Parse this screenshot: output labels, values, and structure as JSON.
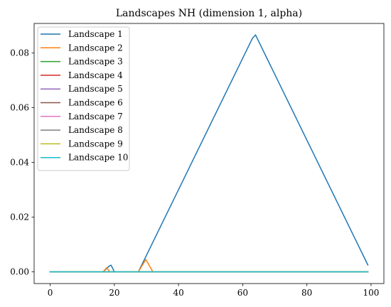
{
  "chart_data": {
    "type": "line",
    "title": "Landscapes NH (dimension 1, alpha)",
    "xlabel": "",
    "ylabel": "",
    "xlim": [
      -5,
      104
    ],
    "ylim": [
      -0.0043,
      0.0908
    ],
    "xticks": [
      0,
      20,
      40,
      60,
      80,
      100
    ],
    "xtick_labels": [
      "0",
      "20",
      "40",
      "60",
      "80",
      "100"
    ],
    "yticks": [
      0.0,
      0.02,
      0.04,
      0.06,
      0.08
    ],
    "ytick_labels": [
      "0.00",
      "0.02",
      "0.04",
      "0.06",
      "0.08"
    ],
    "grid": false,
    "legend_position": "top-left",
    "series": [
      {
        "name": "Landscape 1",
        "color": "#1f77b4",
        "points": [
          [
            0,
            0
          ],
          [
            16.5,
            0
          ],
          [
            18.5,
            0.0022
          ],
          [
            19,
            0.0024
          ],
          [
            20,
            0
          ],
          [
            27.5,
            0
          ],
          [
            63,
            0.0853
          ],
          [
            64,
            0.0866
          ],
          [
            99,
            0.0025
          ]
        ]
      },
      {
        "name": "Landscape 2",
        "color": "#ff7f0e",
        "points": [
          [
            0,
            0
          ],
          [
            16.5,
            0
          ],
          [
            17.6,
            0.0015
          ],
          [
            18.6,
            0
          ],
          [
            27.5,
            0
          ],
          [
            29.8,
            0.0045
          ],
          [
            32,
            0
          ],
          [
            99,
            0
          ]
        ]
      },
      {
        "name": "Landscape 3",
        "color": "#2ca02c",
        "points": [
          [
            0,
            0
          ],
          [
            99,
            0
          ]
        ]
      },
      {
        "name": "Landscape 4",
        "color": "#d62728",
        "points": [
          [
            0,
            0
          ],
          [
            99,
            0
          ]
        ]
      },
      {
        "name": "Landscape 5",
        "color": "#9467bd",
        "points": [
          [
            0,
            0
          ],
          [
            99,
            0
          ]
        ]
      },
      {
        "name": "Landscape 6",
        "color": "#8c564b",
        "points": [
          [
            0,
            0
          ],
          [
            99,
            0
          ]
        ]
      },
      {
        "name": "Landscape 7",
        "color": "#e377c2",
        "points": [
          [
            0,
            0
          ],
          [
            99,
            0
          ]
        ]
      },
      {
        "name": "Landscape 8",
        "color": "#7f7f7f",
        "points": [
          [
            0,
            0
          ],
          [
            99,
            0
          ]
        ]
      },
      {
        "name": "Landscape 9",
        "color": "#bcbd22",
        "points": [
          [
            0,
            0
          ],
          [
            99,
            0
          ]
        ]
      },
      {
        "name": "Landscape 10",
        "color": "#17becf",
        "points": [
          [
            0,
            0
          ],
          [
            99,
            0
          ]
        ]
      }
    ]
  }
}
